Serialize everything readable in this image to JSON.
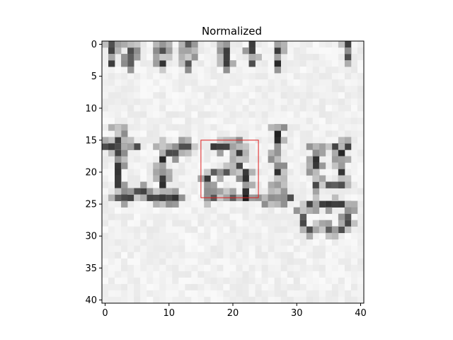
{
  "chart_data": {
    "type": "heatmap",
    "title": "Normalized",
    "xlabel": "",
    "ylabel": "",
    "colormap": "gray",
    "n_cols": 41,
    "n_rows": 41,
    "xlim": [
      -0.5,
      40.5
    ],
    "ylim": [
      40.5,
      -0.5
    ],
    "x_ticks": [
      0,
      10,
      20,
      30,
      40
    ],
    "y_ticks": [
      0,
      5,
      10,
      15,
      20,
      25,
      30,
      35,
      40
    ],
    "x_tick_labels": [
      "0",
      "10",
      "20",
      "30",
      "40"
    ],
    "y_tick_labels": [
      "0",
      "5",
      "10",
      "15",
      "20",
      "25",
      "30",
      "35",
      "40"
    ],
    "content": "grayscale crop of printed text showing letters 'tralg'",
    "highlight_box": {
      "x": [
        15,
        24
      ],
      "y": [
        15,
        24
      ],
      "color": "#e02020"
    },
    "ink_strokes": [
      {
        "x0": 1,
        "y0": 0,
        "x1": 1,
        "y1": 3,
        "v": 0.2
      },
      {
        "x0": 4,
        "y0": 0,
        "x1": 4,
        "y1": 3,
        "v": 0.25
      },
      {
        "x0": 9,
        "y0": 0,
        "x1": 9,
        "y1": 3,
        "v": 0.2
      },
      {
        "x0": 13,
        "y0": 0,
        "x1": 13,
        "y1": 3,
        "v": 0.25
      },
      {
        "x0": 19,
        "y0": 0,
        "x1": 19,
        "y1": 3,
        "v": 0.15
      },
      {
        "x0": 23,
        "y0": 0,
        "x1": 23,
        "y1": 3,
        "v": 0.2
      },
      {
        "x0": 27,
        "y0": 0,
        "x1": 27,
        "y1": 3,
        "v": 0.15
      },
      {
        "x0": 38,
        "y0": 0,
        "x1": 38,
        "y1": 2,
        "v": 0.25
      },
      {
        "x0": 2,
        "y0": 13,
        "x1": 2,
        "y1": 24,
        "v": 0.15
      },
      {
        "x0": 0,
        "y0": 16,
        "x1": 5,
        "y1": 16,
        "v": 0.2
      },
      {
        "x0": 2,
        "y0": 24,
        "x1": 6,
        "y1": 23,
        "v": 0.25
      },
      {
        "x0": 9,
        "y0": 16,
        "x1": 9,
        "y1": 24,
        "v": 0.12
      },
      {
        "x0": 7,
        "y0": 24,
        "x1": 11,
        "y1": 24,
        "v": 0.2
      },
      {
        "x0": 10,
        "y0": 17,
        "x1": 13,
        "y1": 16,
        "v": 0.25
      },
      {
        "x0": 17,
        "y0": 16,
        "x1": 21,
        "y1": 16,
        "v": 0.2
      },
      {
        "x0": 21,
        "y0": 16,
        "x1": 22,
        "y1": 24,
        "v": 0.12
      },
      {
        "x0": 17,
        "y0": 20,
        "x1": 21,
        "y1": 19,
        "v": 0.25
      },
      {
        "x0": 16,
        "y0": 21,
        "x1": 16,
        "y1": 24,
        "v": 0.2
      },
      {
        "x0": 16,
        "y0": 24,
        "x1": 20,
        "y1": 24,
        "v": 0.25
      },
      {
        "x0": 27,
        "y0": 13,
        "x1": 27,
        "y1": 24,
        "v": 0.12
      },
      {
        "x0": 25,
        "y0": 24,
        "x1": 29,
        "y1": 24,
        "v": 0.2
      },
      {
        "x0": 33,
        "y0": 16,
        "x1": 33,
        "y1": 22,
        "v": 0.15
      },
      {
        "x0": 36,
        "y0": 16,
        "x1": 38,
        "y1": 16,
        "v": 0.2
      },
      {
        "x0": 37,
        "y0": 16,
        "x1": 37,
        "y1": 22,
        "v": 0.15
      },
      {
        "x0": 33,
        "y0": 22,
        "x1": 37,
        "y1": 22,
        "v": 0.25
      },
      {
        "x0": 32,
        "y0": 25,
        "x1": 38,
        "y1": 25,
        "v": 0.2
      },
      {
        "x0": 31,
        "y0": 26,
        "x1": 31,
        "y1": 28,
        "v": 0.25
      },
      {
        "x0": 38,
        "y0": 26,
        "x1": 38,
        "y1": 28,
        "v": 0.25
      },
      {
        "x0": 32,
        "y0": 29,
        "x1": 37,
        "y1": 29,
        "v": 0.3
      }
    ]
  }
}
